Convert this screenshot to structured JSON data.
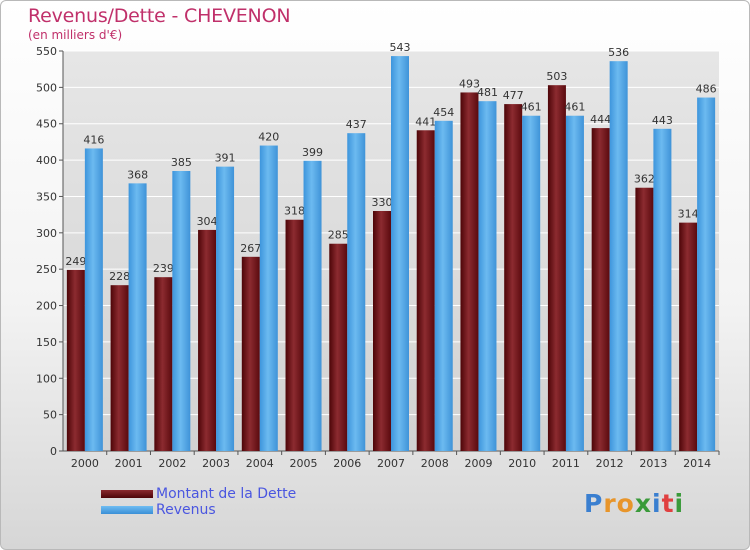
{
  "title": "Revenus/Dette - CHEVENON",
  "subtitle": "(en milliers d'€)",
  "legend": {
    "dette": "Montant de la Dette",
    "revenus": "Revenus"
  },
  "logo": {
    "text": "Proxiti"
  },
  "colors": {
    "dette": "#6b0f14",
    "revenus": "#4da6e8",
    "title": "#c0306a",
    "legend_text": "#4a56e0"
  },
  "chart_data": {
    "type": "bar",
    "title": "Revenus/Dette - CHEVENON",
    "ylabel": "(en milliers d'€)",
    "categories": [
      "2000",
      "2001",
      "2002",
      "2003",
      "2004",
      "2005",
      "2006",
      "2007",
      "2008",
      "2009",
      "2010",
      "2011",
      "2012",
      "2013",
      "2014"
    ],
    "series": [
      {
        "name": "Montant de la Dette",
        "values": [
          249,
          228,
          239,
          304,
          267,
          318,
          285,
          330,
          441,
          493,
          477,
          503,
          444,
          362,
          314
        ]
      },
      {
        "name": "Revenus",
        "values": [
          416,
          368,
          385,
          391,
          420,
          399,
          437,
          543,
          454,
          481,
          461,
          461,
          536,
          443,
          486
        ]
      }
    ],
    "ylim": [
      0,
      550
    ],
    "yticks": [
      0,
      50,
      100,
      150,
      200,
      250,
      300,
      350,
      400,
      450,
      500,
      550
    ],
    "grid": true
  }
}
